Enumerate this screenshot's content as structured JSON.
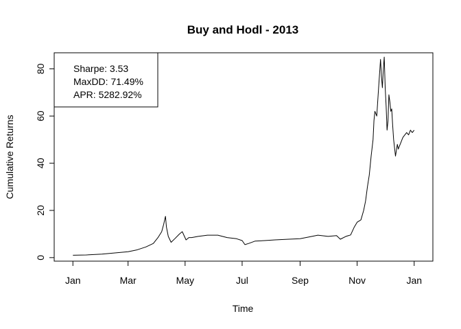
{
  "chart_data": {
    "type": "line",
    "title": "Buy and Hodl -  2013",
    "xlabel": "Time",
    "ylabel": "Cumulative Returns",
    "xlim": [
      "2012-12-12",
      "2014-01-21"
    ],
    "ylim": [
      -1.5,
      86.8
    ],
    "x_ticks": [
      {
        "label": "Jan",
        "date": "2013-01-01"
      },
      {
        "label": "Mar",
        "date": "2013-03-01"
      },
      {
        "label": "May",
        "date": "2013-05-01"
      },
      {
        "label": "Jul",
        "date": "2013-07-01"
      },
      {
        "label": "Sep",
        "date": "2013-09-01"
      },
      {
        "label": "Nov",
        "date": "2013-11-01"
      },
      {
        "label": "Jan",
        "date": "2014-01-01"
      }
    ],
    "y_ticks": [
      0,
      20,
      40,
      60,
      80
    ],
    "grid": false,
    "legend_placement": "top-left",
    "legend": [
      "Sharpe: 3.53",
      "MaxDD: 71.49%",
      "APR: 5282.92%"
    ],
    "line_color": "#000000",
    "series": [
      {
        "x": [
          "2013-01-01",
          "2013-01-15",
          "2013-02-01",
          "2013-02-15",
          "2013-03-01",
          "2013-03-10",
          "2013-03-20",
          "2013-03-28",
          "2013-04-02",
          "2013-04-06",
          "2013-04-08",
          "2013-04-10",
          "2013-04-11",
          "2013-04-13",
          "2013-04-16",
          "2013-04-20",
          "2013-04-25",
          "2013-04-28",
          "2013-05-02",
          "2013-05-05",
          "2013-05-08",
          "2013-05-15",
          "2013-05-25",
          "2013-06-05",
          "2013-06-15",
          "2013-06-25",
          "2013-07-01",
          "2013-07-04",
          "2013-07-08",
          "2013-07-15",
          "2013-07-25",
          "2013-08-05",
          "2013-08-20",
          "2013-09-01",
          "2013-09-10",
          "2013-09-20",
          "2013-10-01",
          "2013-10-10",
          "2013-10-14",
          "2013-10-20",
          "2013-10-25",
          "2013-10-29",
          "2013-11-01",
          "2013-11-05",
          "2013-11-08",
          "2013-11-10",
          "2013-11-12",
          "2013-11-14",
          "2013-11-16",
          "2013-11-18",
          "2013-11-19",
          "2013-11-20",
          "2013-11-22",
          "2013-11-24",
          "2013-11-26",
          "2013-11-27",
          "2013-11-28",
          "2013-11-29",
          "2013-11-30",
          "2013-12-01",
          "2013-12-02",
          "2013-12-03",
          "2013-12-04",
          "2013-12-05",
          "2013-12-06",
          "2013-12-07",
          "2013-12-08",
          "2013-12-09",
          "2013-12-10",
          "2013-12-12",
          "2013-12-14",
          "2013-12-15",
          "2013-12-16",
          "2013-12-17",
          "2013-12-18",
          "2013-12-19",
          "2013-12-20",
          "2013-12-22",
          "2013-12-24",
          "2013-12-26",
          "2013-12-28",
          "2013-12-30",
          "2014-01-01"
        ],
        "y": [
          1,
          1.1,
          1.5,
          2,
          2.5,
          3.2,
          4.5,
          6,
          8.5,
          11,
          14,
          17.5,
          13,
          9,
          6.5,
          8,
          10,
          11,
          7.5,
          8.5,
          8.5,
          9,
          9.5,
          9.5,
          8.5,
          8,
          7.2,
          5.5,
          6,
          7,
          7.2,
          7.5,
          7.8,
          8,
          8.7,
          9.5,
          9,
          9.3,
          7.8,
          9,
          9.6,
          13,
          15,
          16,
          20,
          24,
          30,
          35,
          43,
          50,
          58,
          62,
          60,
          72,
          84,
          77,
          72,
          80,
          85,
          72,
          64,
          54,
          58,
          69,
          66,
          62,
          63,
          56,
          50,
          43,
          48,
          46,
          47,
          48,
          49,
          50,
          51,
          52,
          53,
          52,
          54,
          53,
          54
        ]
      }
    ]
  }
}
